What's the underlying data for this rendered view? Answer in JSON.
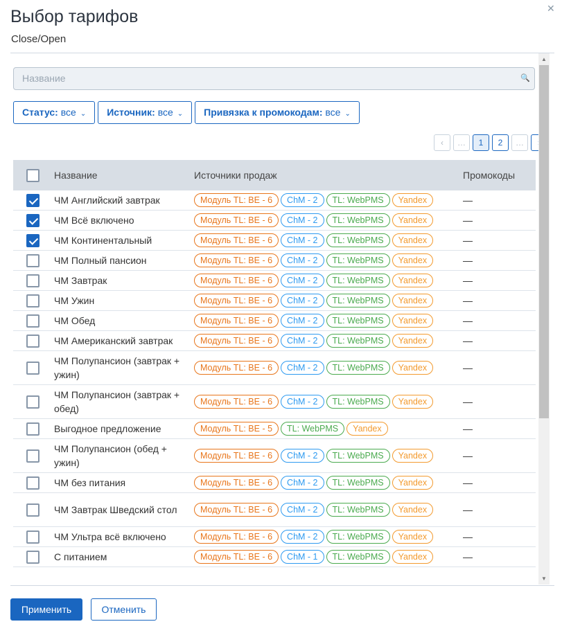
{
  "dialog": {
    "title": "Выбор тарифов",
    "subtitle": "Close/Open",
    "close_icon": "close-icon"
  },
  "search": {
    "placeholder": "Название",
    "icon": "search-icon"
  },
  "filters": [
    {
      "label": "Статус:",
      "value": "все"
    },
    {
      "label": "Источник:",
      "value": "все"
    },
    {
      "label": "Привязка к промокодам:",
      "value": "все"
    }
  ],
  "pagination": {
    "prev": "‹",
    "items": [
      "…",
      "1",
      "2",
      "…"
    ],
    "next": "›",
    "current": "1"
  },
  "table": {
    "headers": {
      "name": "Название",
      "sources": "Источники продаж",
      "promos": "Промокоды"
    },
    "rows": [
      {
        "checked": true,
        "name": "ЧМ Английский завтрак",
        "sources": [
          "Модуль TL: BE - 6",
          "ChM - 2",
          "TL: WebPMS",
          "Yandex"
        ],
        "promo": "—"
      },
      {
        "checked": true,
        "name": "ЧМ Всё включено",
        "sources": [
          "Модуль TL: BE - 6",
          "ChM - 2",
          "TL: WebPMS",
          "Yandex"
        ],
        "promo": "—"
      },
      {
        "checked": true,
        "name": "ЧМ Континентальный",
        "sources": [
          "Модуль TL: BE - 6",
          "ChM - 2",
          "TL: WebPMS",
          "Yandex"
        ],
        "promo": "—"
      },
      {
        "checked": false,
        "name": "ЧМ Полный пансион",
        "sources": [
          "Модуль TL: BE - 6",
          "ChM - 2",
          "TL: WebPMS",
          "Yandex"
        ],
        "promo": "—"
      },
      {
        "checked": false,
        "name": "ЧМ Завтрак",
        "sources": [
          "Модуль TL: BE - 6",
          "ChM - 2",
          "TL: WebPMS",
          "Yandex"
        ],
        "promo": "—"
      },
      {
        "checked": false,
        "name": "ЧМ Ужин",
        "sources": [
          "Модуль TL: BE - 6",
          "ChM - 2",
          "TL: WebPMS",
          "Yandex"
        ],
        "promo": "—"
      },
      {
        "checked": false,
        "name": "ЧМ Обед",
        "sources": [
          "Модуль TL: BE - 6",
          "ChM - 2",
          "TL: WebPMS",
          "Yandex"
        ],
        "promo": "—"
      },
      {
        "checked": false,
        "name": "ЧМ Американский завтрак",
        "sources": [
          "Модуль TL: BE - 6",
          "ChM - 2",
          "TL: WebPMS",
          "Yandex"
        ],
        "promo": "—"
      },
      {
        "checked": false,
        "name": "ЧМ Полупансион (завтрак + ужин)",
        "sources": [
          "Модуль TL: BE - 6",
          "ChM - 2",
          "TL: WebPMS",
          "Yandex"
        ],
        "promo": "—"
      },
      {
        "checked": false,
        "name": "ЧМ Полупансион (завтрак + обед)",
        "sources": [
          "Модуль TL: BE - 6",
          "ChM - 2",
          "TL: WebPMS",
          "Yandex"
        ],
        "promo": "—"
      },
      {
        "checked": false,
        "name": "Выгодное предложение",
        "sources": [
          "Модуль TL: BE - 5",
          "TL: WebPMS",
          "Yandex"
        ],
        "promo": "—"
      },
      {
        "checked": false,
        "name": "ЧМ Полупансион (обед + ужин)",
        "sources": [
          "Модуль TL: BE - 6",
          "ChM - 2",
          "TL: WebPMS",
          "Yandex"
        ],
        "promo": "—"
      },
      {
        "checked": false,
        "name": "ЧМ без питания",
        "sources": [
          "Модуль TL: BE - 6",
          "ChM - 2",
          "TL: WebPMS",
          "Yandex"
        ],
        "promo": "—"
      },
      {
        "checked": false,
        "name": "ЧМ Завтрак Шведский стол",
        "sources": [
          "Модуль TL: BE - 6",
          "ChM - 2",
          "TL: WebPMS",
          "Yandex"
        ],
        "promo": "—"
      },
      {
        "checked": false,
        "name": "ЧМ Ультра всё включено",
        "sources": [
          "Модуль TL: BE - 6",
          "ChM - 2",
          "TL: WebPMS",
          "Yandex"
        ],
        "promo": "—"
      },
      {
        "checked": false,
        "name": "С питанием",
        "sources": [
          "Модуль TL: BE - 6",
          "ChM - 1",
          "TL: WebPMS",
          "Yandex"
        ],
        "promo": "—"
      }
    ]
  },
  "footer": {
    "apply": "Применить",
    "cancel": "Отменить"
  },
  "colors": {
    "accent": "#1a66c0",
    "module_tag": "#e8751a",
    "chm_tag": "#2d9af0",
    "webpms_tag": "#4aaa4e",
    "yandex_tag": "#f39a2e"
  }
}
